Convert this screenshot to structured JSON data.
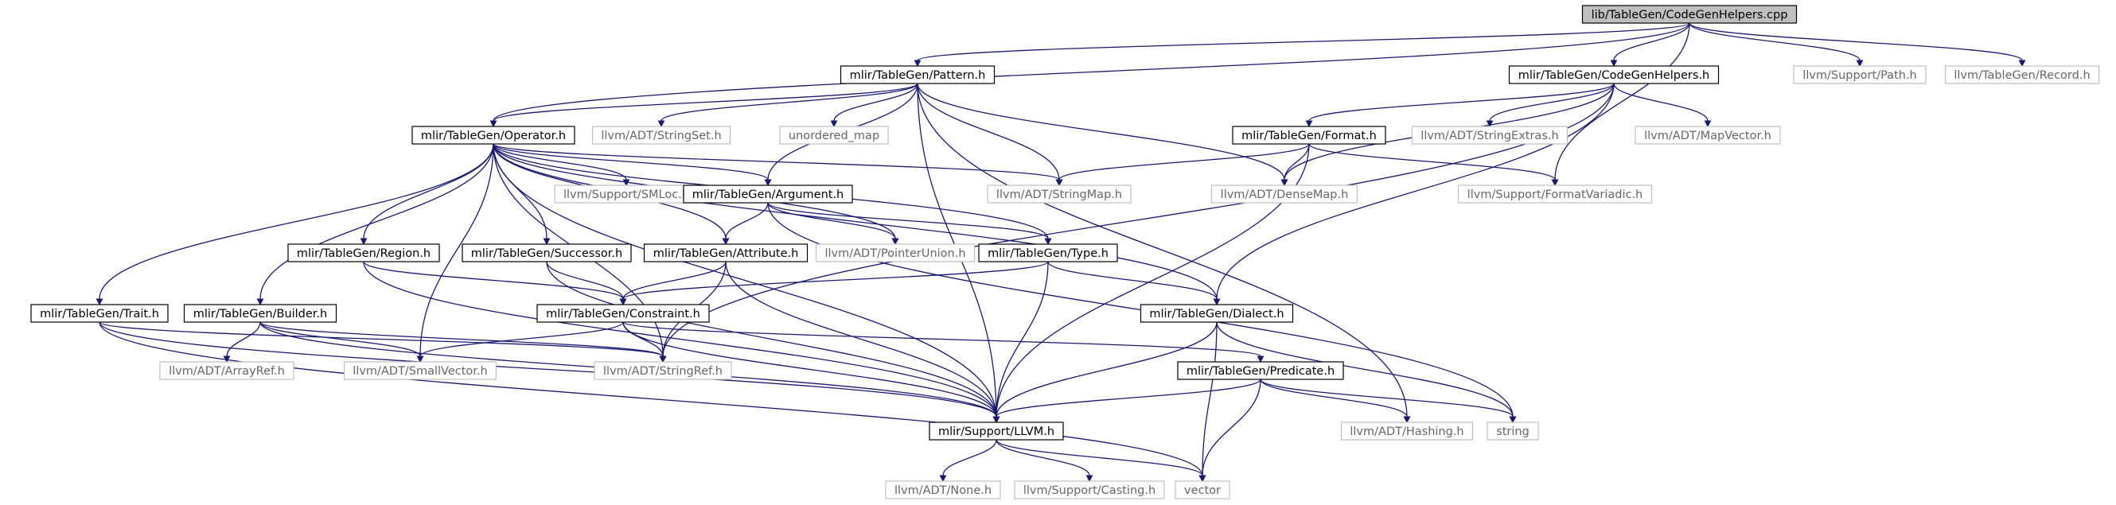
{
  "graph": {
    "colors": {
      "root_fill": "#bfbfbf",
      "internal_border": "#000000",
      "external_border": "#bfbfbf",
      "external_text": "#666666",
      "edge": "#191970"
    },
    "nodes": [
      {
        "id": "root",
        "label": "lib/TableGen/CodeGenHelpers.cpp",
        "kind": "root"
      },
      {
        "id": "pattern",
        "label": "mlir/TableGen/Pattern.h",
        "kind": "internal"
      },
      {
        "id": "cgh",
        "label": "mlir/TableGen/CodeGenHelpers.h",
        "kind": "internal"
      },
      {
        "id": "path",
        "label": "llvm/Support/Path.h",
        "kind": "external"
      },
      {
        "id": "record",
        "label": "llvm/TableGen/Record.h",
        "kind": "external"
      },
      {
        "id": "operator",
        "label": "mlir/TableGen/Operator.h",
        "kind": "internal"
      },
      {
        "id": "stringset",
        "label": "llvm/ADT/StringSet.h",
        "kind": "external"
      },
      {
        "id": "umap",
        "label": "unordered_map",
        "kind": "external"
      },
      {
        "id": "format",
        "label": "mlir/TableGen/Format.h",
        "kind": "internal"
      },
      {
        "id": "strextras",
        "label": "llvm/ADT/StringExtras.h",
        "kind": "external"
      },
      {
        "id": "mapvector",
        "label": "llvm/ADT/MapVector.h",
        "kind": "external"
      },
      {
        "id": "smloc",
        "label": "llvm/Support/SMLoc.h",
        "kind": "external"
      },
      {
        "id": "argument",
        "label": "mlir/TableGen/Argument.h",
        "kind": "internal"
      },
      {
        "id": "stringmap",
        "label": "llvm/ADT/StringMap.h",
        "kind": "external"
      },
      {
        "id": "densemap",
        "label": "llvm/ADT/DenseMap.h",
        "kind": "external"
      },
      {
        "id": "fmtvariadic",
        "label": "llvm/Support/FormatVariadic.h",
        "kind": "external"
      },
      {
        "id": "region",
        "label": "mlir/TableGen/Region.h",
        "kind": "internal"
      },
      {
        "id": "successor",
        "label": "mlir/TableGen/Successor.h",
        "kind": "internal"
      },
      {
        "id": "attribute",
        "label": "mlir/TableGen/Attribute.h",
        "kind": "internal"
      },
      {
        "id": "ptrunion",
        "label": "llvm/ADT/PointerUnion.h",
        "kind": "external"
      },
      {
        "id": "type",
        "label": "mlir/TableGen/Type.h",
        "kind": "internal"
      },
      {
        "id": "trait",
        "label": "mlir/TableGen/Trait.h",
        "kind": "internal"
      },
      {
        "id": "builder",
        "label": "mlir/TableGen/Builder.h",
        "kind": "internal"
      },
      {
        "id": "constraint",
        "label": "mlir/TableGen/Constraint.h",
        "kind": "internal"
      },
      {
        "id": "dialect",
        "label": "mlir/TableGen/Dialect.h",
        "kind": "internal"
      },
      {
        "id": "arrayref",
        "label": "llvm/ADT/ArrayRef.h",
        "kind": "external"
      },
      {
        "id": "smallvector",
        "label": "llvm/ADT/SmallVector.h",
        "kind": "external"
      },
      {
        "id": "stringref",
        "label": "llvm/ADT/StringRef.h",
        "kind": "external"
      },
      {
        "id": "predicate",
        "label": "mlir/TableGen/Predicate.h",
        "kind": "internal"
      },
      {
        "id": "llvm",
        "label": "mlir/Support/LLVM.h",
        "kind": "internal"
      },
      {
        "id": "hashing",
        "label": "llvm/ADT/Hashing.h",
        "kind": "external"
      },
      {
        "id": "string",
        "label": "string",
        "kind": "external"
      },
      {
        "id": "none",
        "label": "llvm/ADT/None.h",
        "kind": "external"
      },
      {
        "id": "casting",
        "label": "llvm/Support/Casting.h",
        "kind": "external"
      },
      {
        "id": "vector",
        "label": "vector",
        "kind": "external"
      }
    ],
    "edges": [
      [
        "root",
        "pattern"
      ],
      [
        "root",
        "cgh"
      ],
      [
        "root",
        "path"
      ],
      [
        "root",
        "record"
      ],
      [
        "root",
        "operator"
      ],
      [
        "root",
        "fmtvariadic"
      ],
      [
        "pattern",
        "operator"
      ],
      [
        "pattern",
        "stringset"
      ],
      [
        "pattern",
        "umap"
      ],
      [
        "pattern",
        "argument"
      ],
      [
        "pattern",
        "stringmap"
      ],
      [
        "pattern",
        "densemap"
      ],
      [
        "pattern",
        "llvm"
      ],
      [
        "pattern",
        "hashing"
      ],
      [
        "cgh",
        "format"
      ],
      [
        "cgh",
        "strextras"
      ],
      [
        "cgh",
        "mapvector"
      ],
      [
        "cgh",
        "densemap"
      ],
      [
        "cgh",
        "dialect"
      ],
      [
        "cgh",
        "stringref"
      ],
      [
        "operator",
        "smloc"
      ],
      [
        "operator",
        "argument"
      ],
      [
        "operator",
        "stringmap"
      ],
      [
        "operator",
        "region"
      ],
      [
        "operator",
        "successor"
      ],
      [
        "operator",
        "attribute"
      ],
      [
        "operator",
        "ptrunion"
      ],
      [
        "operator",
        "type"
      ],
      [
        "operator",
        "trait"
      ],
      [
        "operator",
        "builder"
      ],
      [
        "operator",
        "dialect"
      ],
      [
        "operator",
        "smallvector"
      ],
      [
        "operator",
        "stringref"
      ],
      [
        "operator",
        "llvm"
      ],
      [
        "format",
        "stringmap"
      ],
      [
        "format",
        "densemap"
      ],
      [
        "format",
        "fmtvariadic"
      ],
      [
        "format",
        "llvm"
      ],
      [
        "argument",
        "attribute"
      ],
      [
        "argument",
        "ptrunion"
      ],
      [
        "argument",
        "type"
      ],
      [
        "argument",
        "string"
      ],
      [
        "region",
        "constraint"
      ],
      [
        "region",
        "llvm"
      ],
      [
        "successor",
        "constraint"
      ],
      [
        "successor",
        "llvm"
      ],
      [
        "attribute",
        "constraint"
      ],
      [
        "attribute",
        "stringref"
      ],
      [
        "attribute",
        "llvm"
      ],
      [
        "type",
        "constraint"
      ],
      [
        "type",
        "dialect"
      ],
      [
        "type",
        "llvm"
      ],
      [
        "trait",
        "stringref"
      ],
      [
        "trait",
        "llvm"
      ],
      [
        "trait",
        "vector"
      ],
      [
        "builder",
        "arrayref"
      ],
      [
        "builder",
        "smallvector"
      ],
      [
        "builder",
        "stringref"
      ],
      [
        "builder",
        "llvm"
      ],
      [
        "constraint",
        "smallvector"
      ],
      [
        "constraint",
        "stringref"
      ],
      [
        "constraint",
        "predicate"
      ],
      [
        "constraint",
        "llvm"
      ],
      [
        "dialect",
        "llvm"
      ],
      [
        "dialect",
        "string"
      ],
      [
        "dialect",
        "vector"
      ],
      [
        "predicate",
        "llvm"
      ],
      [
        "predicate",
        "hashing"
      ],
      [
        "predicate",
        "string"
      ],
      [
        "predicate",
        "vector"
      ],
      [
        "llvm",
        "none"
      ],
      [
        "llvm",
        "casting"
      ],
      [
        "llvm",
        "vector"
      ]
    ]
  }
}
